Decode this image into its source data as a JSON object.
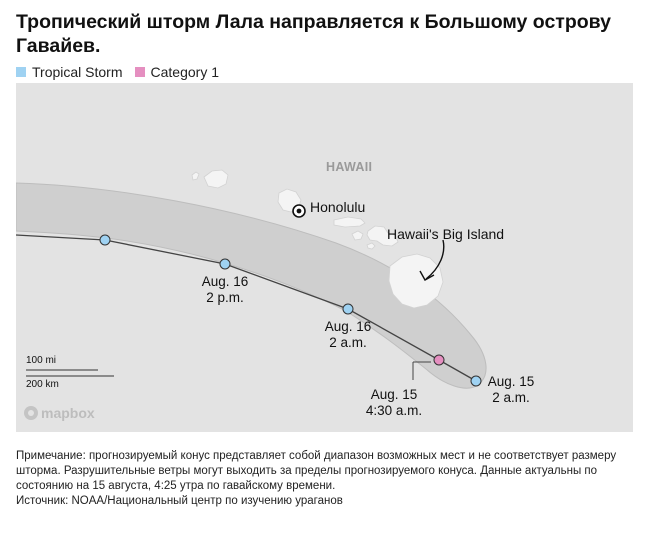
{
  "title": "Тропический шторм Лала направляется к Большому острову Гавайев.",
  "legend": [
    {
      "label": "Tropical Storm",
      "color": "#9fd2f2"
    },
    {
      "label": "Category 1",
      "color": "#e58fc0"
    }
  ],
  "map": {
    "state_label": "HAWAII",
    "city_label": "Honolulu",
    "island_label": "Hawaii's Big Island",
    "track_points": [
      {
        "category": "Tropical Storm",
        "label": ""
      },
      {
        "category": "Tropical Storm",
        "label_line1": "Aug. 16",
        "label_line2": "2 p.m."
      },
      {
        "category": "Tropical Storm",
        "label_line1": "Aug. 16",
        "label_line2": "2 a.m."
      },
      {
        "category": "Category 1",
        "label_line1": "Aug. 15",
        "label_line2": "4:30 a.m."
      },
      {
        "category": "Tropical Storm",
        "label_line1": "Aug. 15",
        "label_line2": "2 a.m."
      }
    ],
    "scale_mi": "100 mi",
    "scale_km": "200 km",
    "attribution": "mapbox"
  },
  "note": "Примечание: прогнозируемый конус представляет собой диапазон возможных мест и не соответствует размеру шторма. Разрушительные ветры могут выходить за пределы прогнозируемого конуса. Данные актуальны по состоянию на 15 августа, 4:25 утра по гавайскому времени.",
  "source": "Источник: NOAA/Национальный центр по изучению ураганов",
  "colors": {
    "map_bg": "#e3e3e3",
    "cone": "#cfcfcf",
    "track": "#444444"
  }
}
